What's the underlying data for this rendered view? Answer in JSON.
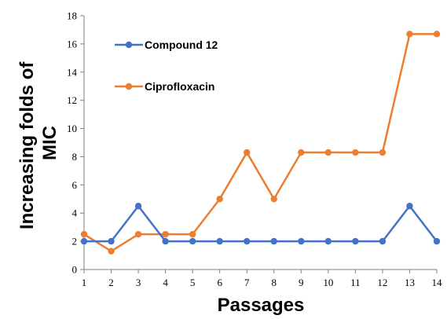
{
  "chart_data": {
    "type": "line",
    "title": "",
    "xlabel": "Passages",
    "ylabel_lines": [
      "Increasing folds of",
      "MIC"
    ],
    "x": [
      1,
      2,
      3,
      4,
      5,
      6,
      7,
      8,
      9,
      10,
      11,
      12,
      13,
      14
    ],
    "xlim": [
      1,
      14
    ],
    "ylim": [
      0,
      18
    ],
    "yticks": [
      0,
      2,
      4,
      6,
      8,
      10,
      12,
      14,
      16,
      18
    ],
    "grid": false,
    "legend_position": "top-left",
    "series": [
      {
        "name": "Compound 12",
        "color": "#4472C4",
        "values": [
          2,
          2,
          4.5,
          2,
          2,
          2,
          2,
          2,
          2,
          2,
          2,
          2,
          4.5,
          2
        ]
      },
      {
        "name": "Ciprofloxacin",
        "color": "#ED7D31",
        "values": [
          2.5,
          1.3,
          2.5,
          2.5,
          2.5,
          5,
          8.3,
          5,
          8.3,
          8.3,
          8.3,
          8.3,
          16.7,
          16.7
        ]
      }
    ]
  }
}
